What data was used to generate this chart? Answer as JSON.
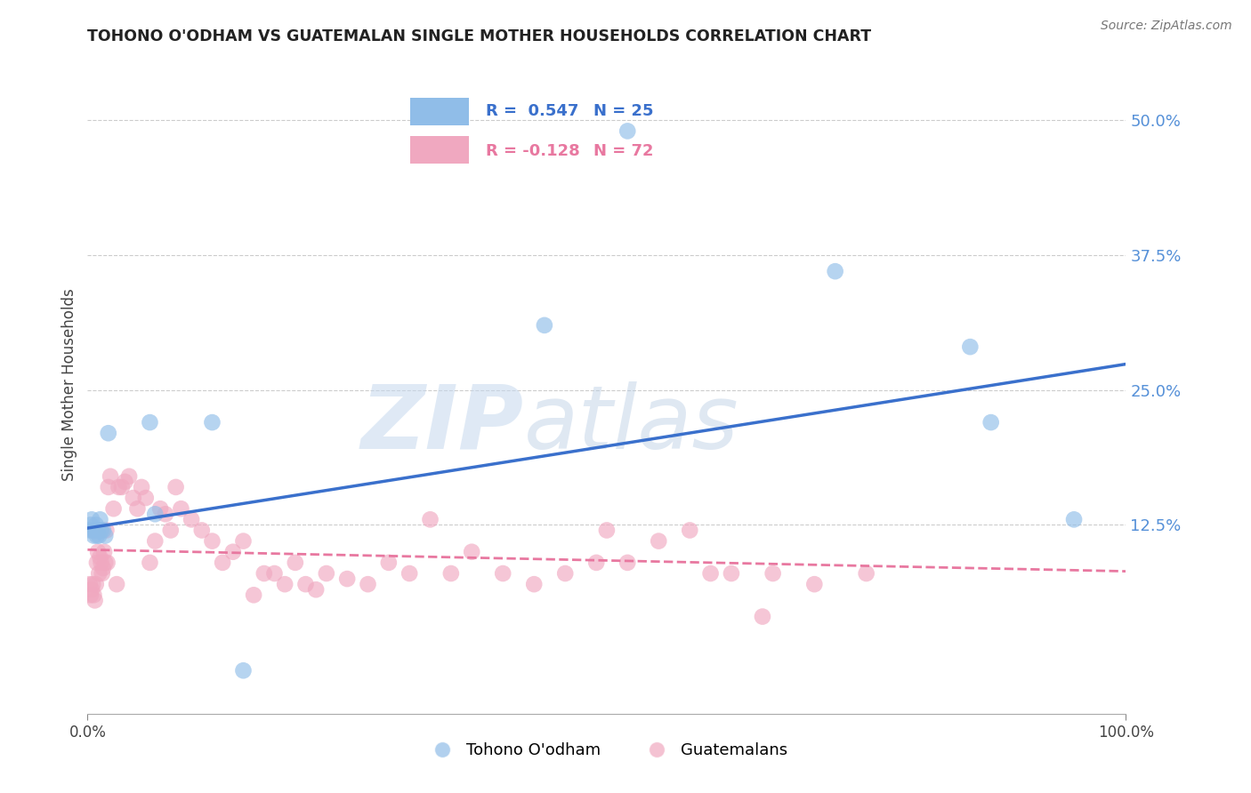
{
  "title": "TOHONO O'ODHAM VS GUATEMALAN SINGLE MOTHER HOUSEHOLDS CORRELATION CHART",
  "source": "Source: ZipAtlas.com",
  "ylabel": "Single Mother Households",
  "xlim": [
    0.0,
    1.0
  ],
  "ylim": [
    -0.05,
    0.56
  ],
  "yticks": [
    0.125,
    0.25,
    0.375,
    0.5
  ],
  "ytick_labels": [
    "12.5%",
    "25.0%",
    "37.5%",
    "50.0%"
  ],
  "xticks": [
    0.0,
    1.0
  ],
  "xtick_labels": [
    "0.0%",
    "100.0%"
  ],
  "grid_color": "#cccccc",
  "background_color": "#ffffff",
  "tohono_color": "#90bde8",
  "guatemalan_color": "#f0a8c0",
  "tohono_line_color": "#3a70cc",
  "guatemalan_line_color": "#e878a0",
  "legend_R1": "R =  0.547",
  "legend_N1": "N = 25",
  "legend_R2": "R = -0.128",
  "legend_N2": "N = 72",
  "legend_label1": "Tohono O'odham",
  "legend_label2": "Guatemalans",
  "watermark_zip": "ZIP",
  "watermark_atlas": "atlas",
  "tohono_x": [
    0.002,
    0.003,
    0.004,
    0.005,
    0.006,
    0.007,
    0.008,
    0.009,
    0.01,
    0.011,
    0.012,
    0.013,
    0.015,
    0.017,
    0.02,
    0.06,
    0.065,
    0.12,
    0.15,
    0.44,
    0.52,
    0.72,
    0.85,
    0.87,
    0.95
  ],
  "tohono_y": [
    0.12,
    0.125,
    0.13,
    0.12,
    0.115,
    0.12,
    0.125,
    0.115,
    0.12,
    0.115,
    0.13,
    0.12,
    0.12,
    0.115,
    0.21,
    0.22,
    0.135,
    0.22,
    -0.01,
    0.31,
    0.49,
    0.36,
    0.29,
    0.22,
    0.13
  ],
  "guatemalan_x": [
    0.002,
    0.003,
    0.004,
    0.005,
    0.006,
    0.007,
    0.008,
    0.009,
    0.01,
    0.011,
    0.012,
    0.013,
    0.014,
    0.015,
    0.016,
    0.017,
    0.018,
    0.019,
    0.02,
    0.022,
    0.025,
    0.028,
    0.03,
    0.033,
    0.036,
    0.04,
    0.044,
    0.048,
    0.052,
    0.056,
    0.06,
    0.065,
    0.07,
    0.075,
    0.08,
    0.085,
    0.09,
    0.1,
    0.11,
    0.12,
    0.13,
    0.14,
    0.15,
    0.16,
    0.17,
    0.18,
    0.19,
    0.2,
    0.21,
    0.22,
    0.23,
    0.25,
    0.27,
    0.29,
    0.31,
    0.33,
    0.35,
    0.37,
    0.4,
    0.43,
    0.46,
    0.49,
    0.52,
    0.55,
    0.58,
    0.62,
    0.66,
    0.7,
    0.75,
    0.5,
    0.6,
    0.65
  ],
  "guatemalan_y": [
    0.07,
    0.06,
    0.065,
    0.07,
    0.06,
    0.055,
    0.07,
    0.09,
    0.1,
    0.08,
    0.095,
    0.09,
    0.08,
    0.085,
    0.1,
    0.09,
    0.12,
    0.09,
    0.16,
    0.17,
    0.14,
    0.07,
    0.16,
    0.16,
    0.165,
    0.17,
    0.15,
    0.14,
    0.16,
    0.15,
    0.09,
    0.11,
    0.14,
    0.135,
    0.12,
    0.16,
    0.14,
    0.13,
    0.12,
    0.11,
    0.09,
    0.1,
    0.11,
    0.06,
    0.08,
    0.08,
    0.07,
    0.09,
    0.07,
    0.065,
    0.08,
    0.075,
    0.07,
    0.09,
    0.08,
    0.13,
    0.08,
    0.1,
    0.08,
    0.07,
    0.08,
    0.09,
    0.09,
    0.11,
    0.12,
    0.08,
    0.08,
    0.07,
    0.08,
    0.12,
    0.08,
    0.04
  ],
  "blue_line_x0": 0.0,
  "blue_line_y0": 0.122,
  "blue_line_x1": 1.0,
  "blue_line_y1": 0.274,
  "pink_line_x0": 0.0,
  "pink_line_y0": 0.102,
  "pink_line_x1": 1.0,
  "pink_line_y1": 0.082
}
